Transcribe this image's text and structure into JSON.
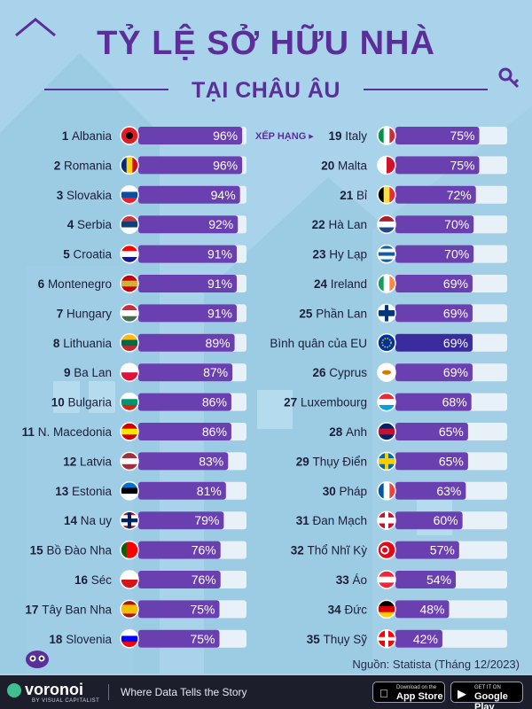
{
  "title": "TỶ LỆ SỞ HỮU NHÀ",
  "subtitle": "TẠI CHÂU ÂU",
  "ranking_label": "XẾP HẠNG ▸",
  "source": "Nguồn: Statista (Tháng 12/2023)",
  "footer": {
    "brand": "voronoi",
    "brand_sub": "BY VISUAL CAPITALIST",
    "tagline": "Where Data Tells the Story",
    "appstore_small": "Download on the",
    "appstore_big": "App Store",
    "playstore_small": "GET IT ON",
    "playstore_big": "Google Play"
  },
  "colors": {
    "bar_fill": "#6a3fb0",
    "bar_track": "#e9f1f8",
    "eu_bar_fill": "#3a2c9e",
    "title": "#5b2e9a",
    "background": "#a9d3ea"
  },
  "chart_data": {
    "type": "bar",
    "title": "TỶ LỆ SỞ HỮU NHÀ",
    "subtitle": "TẠI CHÂU ÂU",
    "xlim": [
      0,
      100
    ],
    "unit": "%",
    "columns": [
      [
        {
          "rank": "1",
          "country": "Albania",
          "value": 96,
          "flag": "albania"
        },
        {
          "rank": "2",
          "country": "Romania",
          "value": 96,
          "flag": "romania"
        },
        {
          "rank": "3",
          "country": "Slovakia",
          "value": 94,
          "flag": "slovakia"
        },
        {
          "rank": "4",
          "country": "Serbia",
          "value": 92,
          "flag": "serbia"
        },
        {
          "rank": "5",
          "country": "Croatia",
          "value": 91,
          "flag": "croatia"
        },
        {
          "rank": "6",
          "country": "Montenegro",
          "value": 91,
          "flag": "montenegro"
        },
        {
          "rank": "7",
          "country": "Hungary",
          "value": 91,
          "flag": "hungary"
        },
        {
          "rank": "8",
          "country": "Lithuania",
          "value": 89,
          "flag": "lithuania"
        },
        {
          "rank": "9",
          "country": "Ba Lan",
          "value": 87,
          "flag": "poland"
        },
        {
          "rank": "10",
          "country": "Bulgaria",
          "value": 86,
          "flag": "bulgaria"
        },
        {
          "rank": "11",
          "country": "N. Macedonia",
          "value": 86,
          "flag": "macedonia"
        },
        {
          "rank": "12",
          "country": "Latvia",
          "value": 83,
          "flag": "latvia"
        },
        {
          "rank": "13",
          "country": "Estonia",
          "value": 81,
          "flag": "estonia"
        },
        {
          "rank": "14",
          "country": "Na uy",
          "value": 79,
          "flag": "norway"
        },
        {
          "rank": "15",
          "country": "Bồ Đào Nha",
          "value": 76,
          "flag": "portugal"
        },
        {
          "rank": "16",
          "country": "Séc",
          "value": 76,
          "flag": "czech"
        },
        {
          "rank": "17",
          "country": "Tây Ban Nha",
          "value": 75,
          "flag": "spain"
        },
        {
          "rank": "18",
          "country": "Slovenia",
          "value": 75,
          "flag": "slovenia"
        }
      ],
      [
        {
          "rank": "19",
          "country": "Italy",
          "value": 75,
          "flag": "italy"
        },
        {
          "rank": "20",
          "country": "Malta",
          "value": 75,
          "flag": "malta"
        },
        {
          "rank": "21",
          "country": "Bỉ",
          "value": 72,
          "flag": "belgium"
        },
        {
          "rank": "22",
          "country": "Hà Lan",
          "value": 70,
          "flag": "netherlands"
        },
        {
          "rank": "23",
          "country": "Hy Lạp",
          "value": 70,
          "flag": "greece"
        },
        {
          "rank": "24",
          "country": "Ireland",
          "value": 69,
          "flag": "ireland"
        },
        {
          "rank": "25",
          "country": "Phần Lan",
          "value": 69,
          "flag": "finland"
        },
        {
          "rank": "",
          "country": "Bình quân của EU",
          "value": 69,
          "flag": "eu"
        },
        {
          "rank": "26",
          "country": "Cyprus",
          "value": 69,
          "flag": "cyprus"
        },
        {
          "rank": "27",
          "country": "Luxembourg",
          "value": 68,
          "flag": "luxembourg"
        },
        {
          "rank": "28",
          "country": "Anh",
          "value": 65,
          "flag": "uk"
        },
        {
          "rank": "29",
          "country": "Thụy Điển",
          "value": 65,
          "flag": "sweden"
        },
        {
          "rank": "30",
          "country": "Pháp",
          "value": 63,
          "flag": "france"
        },
        {
          "rank": "31",
          "country": "Đan Mạch",
          "value": 60,
          "flag": "denmark"
        },
        {
          "rank": "32",
          "country": "Thổ Nhĩ Kỳ",
          "value": 57,
          "flag": "turkey"
        },
        {
          "rank": "33",
          "country": "Áo",
          "value": 54,
          "flag": "austria"
        },
        {
          "rank": "34",
          "country": "Đức",
          "value": 48,
          "flag": "germany"
        },
        {
          "rank": "35",
          "country": "Thụy Sỹ",
          "value": 42,
          "flag": "switzerland"
        }
      ]
    ]
  }
}
